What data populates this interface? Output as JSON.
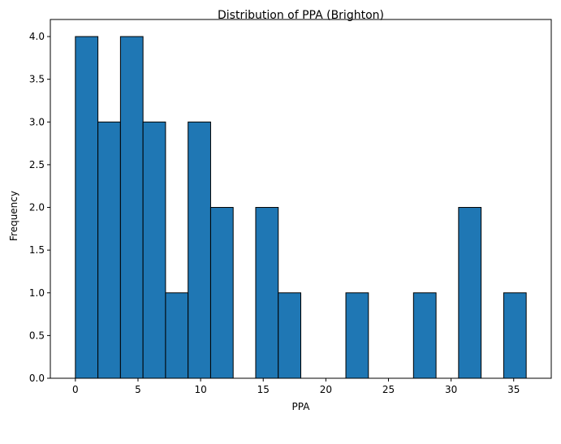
{
  "chart_data": {
    "type": "bar",
    "subtype": "histogram",
    "title": "Distribution of PPA (Brighton)",
    "xlabel": "PPA",
    "ylabel": "Frequency",
    "bar_color": "#1f77b4",
    "edge_color": "#000000",
    "xlim": [
      -2,
      38
    ],
    "ylim": [
      0,
      4.2
    ],
    "xticks": [
      0,
      5,
      10,
      15,
      20,
      25,
      30,
      35
    ],
    "xtick_labels": [
      "0",
      "5",
      "10",
      "15",
      "20",
      "25",
      "30",
      "35"
    ],
    "yticks": [
      0,
      0.5,
      1,
      1.5,
      2,
      2.5,
      3,
      3.5,
      4
    ],
    "ytick_labels": [
      "0.0",
      "0.5",
      "1.0",
      "1.5",
      "2.0",
      "2.5",
      "3.0",
      "3.5",
      "4.0"
    ],
    "bin_edges": [
      0,
      1.8,
      3.6,
      5.4,
      7.2,
      9.0,
      10.8,
      12.6,
      14.4,
      16.2,
      18.0,
      19.8,
      21.6,
      23.4,
      25.2,
      27.0,
      28.8,
      30.6,
      32.4,
      34.2,
      36.0
    ],
    "values": [
      4,
      3,
      4,
      3,
      1,
      3,
      2,
      0,
      2,
      1,
      0,
      0,
      1,
      0,
      0,
      1,
      0,
      2,
      0,
      1
    ],
    "grid": false
  }
}
